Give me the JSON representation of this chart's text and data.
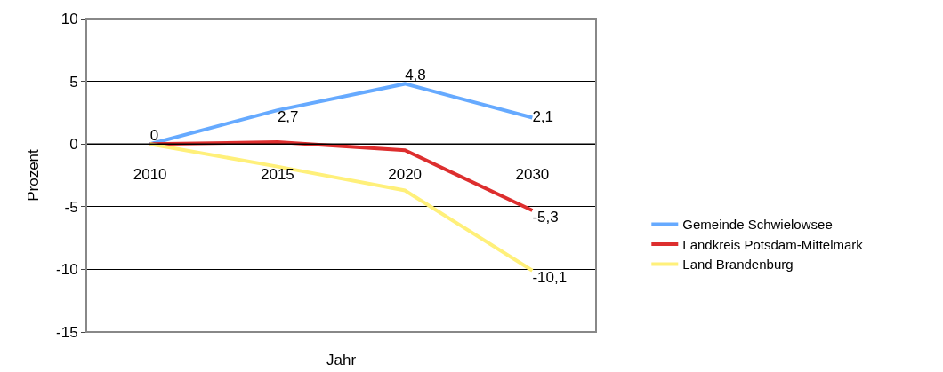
{
  "chart_data": {
    "type": "line",
    "xlabel": "Jahr",
    "ylabel": "Prozent",
    "categories": [
      "2010",
      "2015",
      "2020",
      "2030"
    ],
    "series": [
      {
        "name": "Gemeinde Schwielowsee",
        "color": "#66aaff",
        "values": [
          0,
          2.7,
          4.8,
          2.1
        ],
        "value_labels": [
          "0",
          "2,7",
          "4,8",
          "2,1"
        ]
      },
      {
        "name": "Landkreis Potsdam-Mittelmark",
        "color": "#dd2e2e",
        "values": [
          0,
          0.15,
          -0.5,
          -5.3
        ],
        "value_labels": [
          null,
          null,
          null,
          "-5,3"
        ]
      },
      {
        "name": "Land Brandenburg",
        "color": "#fff07a",
        "values": [
          0,
          -1.8,
          -3.7,
          -10.1
        ],
        "value_labels": [
          null,
          null,
          null,
          "-10,1"
        ]
      }
    ],
    "ylim": [
      -15,
      10
    ],
    "yticks": [
      -15,
      -10,
      -5,
      0,
      5,
      10
    ],
    "grid": "y",
    "legend": "right",
    "marker": "none",
    "line_style": "solid"
  }
}
